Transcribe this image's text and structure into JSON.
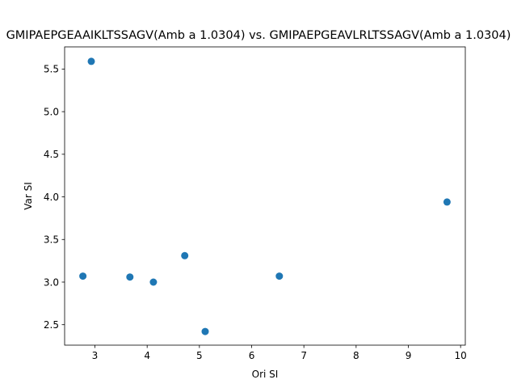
{
  "chart_data": {
    "type": "scatter",
    "title": "GMIPAEPGEAAIKLTSSAGV(Amb a 1.0304) vs. GMIPAEPGEAVLRLTSSAGV(Amb a 1.0304)",
    "xlabel": "Ori SI",
    "ylabel": "Var SI",
    "xlim": [
      2.42,
      10.09
    ],
    "ylim": [
      2.26,
      5.76
    ],
    "xticks": [
      3,
      4,
      5,
      6,
      7,
      8,
      9,
      10
    ],
    "xtick_labels": [
      "3",
      "4",
      "5",
      "6",
      "7",
      "8",
      "9",
      "10"
    ],
    "yticks": [
      2.5,
      3.0,
      3.5,
      4.0,
      4.5,
      5.0,
      5.5
    ],
    "ytick_labels": [
      "2.5",
      "3.0",
      "3.5",
      "4.0",
      "4.5",
      "5.0",
      "5.5"
    ],
    "grid": false,
    "marker_color": "#1f77b4",
    "points": [
      {
        "x": 2.93,
        "y": 5.59
      },
      {
        "x": 2.77,
        "y": 3.07
      },
      {
        "x": 3.67,
        "y": 3.06
      },
      {
        "x": 4.12,
        "y": 3.0
      },
      {
        "x": 4.72,
        "y": 3.31
      },
      {
        "x": 5.11,
        "y": 2.42
      },
      {
        "x": 6.53,
        "y": 3.07
      },
      {
        "x": 9.74,
        "y": 3.94
      }
    ]
  }
}
